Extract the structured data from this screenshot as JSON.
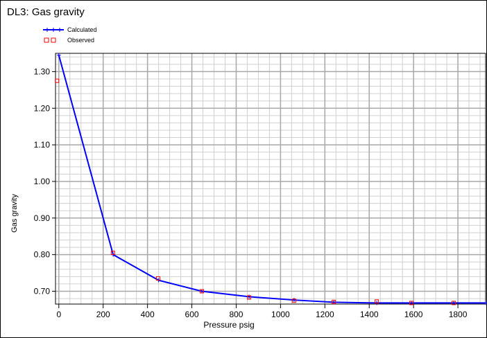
{
  "chart_data": {
    "type": "line",
    "title": "DL3: Gas gravity",
    "x_label": "Pressure  psig",
    "y_label": "Gas gravity",
    "xlim": [
      -15,
      1925
    ],
    "ylim": [
      0.665,
      1.35
    ],
    "xticks": [
      0,
      200,
      400,
      600,
      800,
      1000,
      1200,
      1400,
      1600,
      1800
    ],
    "yticks": [
      {
        "value": 0.7,
        "label": "0.70"
      },
      {
        "value": 0.8,
        "label": "0.80"
      },
      {
        "value": 0.9,
        "label": "0.90"
      },
      {
        "value": 1.0,
        "label": "1.00"
      },
      {
        "value": 1.1,
        "label": "1.10"
      },
      {
        "value": 1.2,
        "label": "1.20"
      },
      {
        "value": 1.3,
        "label": "1.30"
      }
    ],
    "grid": true,
    "series": [
      {
        "name": "Calculated",
        "color": "#0000ff",
        "style": "line",
        "x": [
          0,
          245,
          450,
          645,
          858,
          1061,
          1240,
          1434,
          1590,
          1781,
          1925
        ],
        "values": [
          1.345,
          0.8,
          0.73,
          0.7,
          0.685,
          0.676,
          0.67,
          0.668,
          0.668,
          0.668,
          0.668
        ]
      },
      {
        "name": "Observed",
        "color": "#ff0000",
        "style": "markers",
        "x": [
          -8,
          244,
          448,
          645,
          858,
          1061,
          1240,
          1434,
          1590,
          1781
        ],
        "values": [
          1.275,
          0.805,
          0.735,
          0.7,
          0.683,
          0.674,
          0.671,
          0.672,
          0.668,
          0.668
        ]
      }
    ]
  }
}
